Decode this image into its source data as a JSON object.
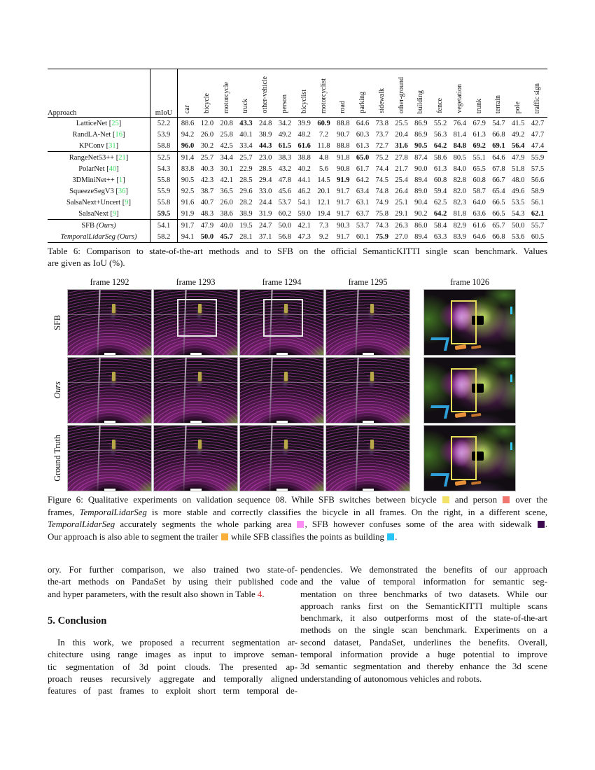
{
  "table": {
    "caption_lines": [
      "Table 6: Comparison to state-of-the-art methods and to SFB on the official SemanticKITTI single scan benchmark. Values",
      "are given as IoU (%)."
    ],
    "header": {
      "approach": "Approach",
      "miou": "mIoU",
      "classes": [
        "car",
        "bicycle",
        "motorcycle",
        "truck",
        "other-vehicle",
        "person",
        "bicyclist",
        "motorcyclist",
        "road",
        "parking",
        "sidewalk",
        "other-ground",
        "building",
        "fence",
        "vegetation",
        "trunk",
        "terrain",
        "pole",
        "traffic sign"
      ]
    },
    "rows": [
      {
        "name": "LatticeNet",
        "ref": "25",
        "miou": "52.2",
        "vals": [
          "88.6",
          "12.0",
          "20.8",
          "43.3",
          "24.8",
          "34.2",
          "39.9",
          "60.9",
          "88.8",
          "64.6",
          "73.8",
          "25.5",
          "86.9",
          "55.2",
          "76.4",
          "67.9",
          "54.7",
          "41.5",
          "42.7"
        ],
        "bold": [
          3,
          7
        ]
      },
      {
        "name": "RandLA-Net",
        "ref": "16",
        "miou": "53.9",
        "vals": [
          "94.2",
          "26.0",
          "25.8",
          "40.1",
          "38.9",
          "49.2",
          "48.2",
          "7.2",
          "90.7",
          "60.3",
          "73.7",
          "20.4",
          "86.9",
          "56.3",
          "81.4",
          "61.3",
          "66.8",
          "49.2",
          "47.7"
        ],
        "bold": []
      },
      {
        "name": "KPConv",
        "ref": "31",
        "miou": "58.8",
        "vals": [
          "96.0",
          "30.2",
          "42.5",
          "33.4",
          "44.3",
          "61.5",
          "61.6",
          "11.8",
          "88.8",
          "61.3",
          "72.7",
          "31.6",
          "90.5",
          "64.2",
          "84.8",
          "69.2",
          "69.1",
          "56.4",
          "47.4"
        ],
        "bold": [
          0,
          4,
          5,
          6,
          11,
          12,
          13,
          14,
          15,
          16,
          17
        ],
        "group_end": true
      },
      {
        "name": "RangeNet53++",
        "ref": "21",
        "miou": "52.5",
        "vals": [
          "91.4",
          "25.7",
          "34.4",
          "25.7",
          "23.0",
          "38.3",
          "38.8",
          "4.8",
          "91.8",
          "65.0",
          "75.2",
          "27.8",
          "87.4",
          "58.6",
          "80.5",
          "55.1",
          "64.6",
          "47.9",
          "55.9"
        ],
        "bold": [
          9
        ]
      },
      {
        "name": "PolarNet",
        "ref": "40",
        "miou": "54.3",
        "vals": [
          "83.8",
          "40.3",
          "30.1",
          "22.9",
          "28.5",
          "43.2",
          "40.2",
          "5.6",
          "90.8",
          "61.7",
          "74.4",
          "21.7",
          "90.0",
          "61.3",
          "84.0",
          "65.5",
          "67.8",
          "51.8",
          "57.5"
        ],
        "bold": []
      },
      {
        "name": "3DMiniNet++",
        "ref": "1",
        "miou": "55.8",
        "vals": [
          "90.5",
          "42.3",
          "42.1",
          "28.5",
          "29.4",
          "47.8",
          "44.1",
          "14.5",
          "91.9",
          "64.2",
          "74.5",
          "25.4",
          "89.4",
          "60.8",
          "82.8",
          "60.8",
          "66.7",
          "48.0",
          "56.6"
        ],
        "bold": [
          8
        ]
      },
      {
        "name": "SqueezeSegV3",
        "ref": "36",
        "miou": "55.9",
        "vals": [
          "92.5",
          "38.7",
          "36.5",
          "29.6",
          "33.0",
          "45.6",
          "46.2",
          "20.1",
          "91.7",
          "63.4",
          "74.8",
          "26.4",
          "89.0",
          "59.4",
          "82.0",
          "58.7",
          "65.4",
          "49.6",
          "58.9"
        ],
        "bold": []
      },
      {
        "name": "SalsaNext+Uncert",
        "ref": "9",
        "miou": "55.8",
        "vals": [
          "91.6",
          "40.7",
          "26.0",
          "28.2",
          "24.4",
          "53.7",
          "54.1",
          "12.1",
          "91.7",
          "63.1",
          "74.9",
          "25.1",
          "90.4",
          "62.5",
          "82.3",
          "64.0",
          "66.5",
          "53.5",
          "56.1"
        ],
        "bold": []
      },
      {
        "name": "SalsaNext",
        "ref": "9",
        "miou": "59.5",
        "miou_bold": true,
        "vals": [
          "91.9",
          "48.3",
          "38.6",
          "38.9",
          "31.9",
          "60.2",
          "59.0",
          "19.4",
          "91.7",
          "63.7",
          "75.8",
          "29.1",
          "90.2",
          "64.2",
          "81.8",
          "63.6",
          "66.5",
          "54.3",
          "62.1"
        ],
        "bold": [
          13,
          18
        ],
        "group_end": true
      },
      {
        "name": "SFB",
        "suffix": " (Ours)",
        "miou": "54.1",
        "vals": [
          "91.7",
          "47.9",
          "40.0",
          "19.5",
          "24.7",
          "50.0",
          "42.1",
          "7.3",
          "90.3",
          "53.7",
          "74.3",
          "26.3",
          "86.0",
          "58.4",
          "82.9",
          "61.6",
          "65.7",
          "50.0",
          "55.7"
        ],
        "bold": []
      },
      {
        "name": "TemporalLidarSeg",
        "name_italic": true,
        "suffix": " (Ours)",
        "miou": "58.2",
        "vals": [
          "94.1",
          "50.0",
          "45.7",
          "28.1",
          "37.1",
          "56.8",
          "47.3",
          "9.2",
          "91.7",
          "60.1",
          "75.9",
          "27.0",
          "89.4",
          "63.3",
          "83.9",
          "64.6",
          "66.8",
          "53.6",
          "60.5"
        ],
        "bold": [
          1,
          2,
          10
        ]
      }
    ]
  },
  "figure": {
    "frame_labels": [
      "frame 1292",
      "frame 1293",
      "frame 1294",
      "frame 1295",
      "frame 1026"
    ],
    "row_labels": [
      {
        "text": "SFB",
        "italic": false
      },
      {
        "text": "Ours",
        "italic": true
      },
      {
        "text": "Ground Truth",
        "italic": false
      }
    ],
    "legend_colors": {
      "bicycle": "#f2e26a",
      "person": "#f07670",
      "parking": "#fb8ef2",
      "sidewalk": "#3d0a4f",
      "trailer": "#fbb03b",
      "building": "#29c5f6"
    },
    "caption_lines": [
      [
        {
          "t": "Figure 6: Qualitative experiments on validation sequence 08. While SFB switches between bicycle "
        },
        {
          "swatch": "bicycle"
        },
        {
          "t": " and person "
        },
        {
          "swatch": "person"
        },
        {
          "t": " over the"
        }
      ],
      [
        {
          "t": "frames, "
        },
        {
          "t": "TemporalLidarSeg",
          "i": true
        },
        {
          "t": " is more stable and correctly classifies the bicycle in all frames. On the right, in a different scene,"
        }
      ],
      [
        {
          "t": "TemporalLidarSeg",
          "i": true
        },
        {
          "t": " accurately segments the whole parking area "
        },
        {
          "swatch": "parking"
        },
        {
          "t": ", SFB however confuses some of the area with sidewalk "
        },
        {
          "swatch": "sidewalk"
        },
        {
          "t": "."
        }
      ],
      [
        {
          "t": "Our approach is also able to segment the trailer "
        },
        {
          "swatch": "trailer"
        },
        {
          "t": " while SFB classifies the points as building "
        },
        {
          "swatch": "building"
        },
        {
          "t": "."
        }
      ]
    ]
  },
  "body": {
    "left": {
      "para1_lines": [
        [
          {
            "t": "ory.  For further comparison, we also trained two state-of-"
          }
        ],
        [
          {
            "t": "the-art methods on PandaSet by using their published code"
          }
        ],
        [
          {
            "t": "and hyper parameters, with the result also shown in Table "
          },
          {
            "t": "4",
            "red": true
          },
          {
            "t": "."
          }
        ]
      ],
      "heading": "5. Conclusion",
      "para2_lines": [
        "In this work, we proposed a recurrent segmentation ar-",
        "chitecture using range images as input to improve seman-",
        "tic segmentation of 3d point clouds.  The presented ap-",
        "proach reuses recursively aggregate and temporally aligned",
        "features of past frames to exploit short term temporal de-"
      ]
    },
    "right": {
      "para_lines": [
        "pendencies.  We demonstrated the benefits of our approach",
        "and the value of temporal information for semantic seg-",
        "mentation on three benchmarks of two datasets.  While our",
        "approach ranks first on the SemanticKITTI multiple scans",
        "benchmark, it also outperforms most of the state-of-the-art",
        "methods on the single scan benchmark.  Experiments on a",
        "second dataset, PandaSet, underlines the benefits.  Overall,",
        "temporal information provide a huge potential to improve",
        "3d semantic segmentation and thereby enhance the 3d scene",
        "understanding of autonomous vehicles and robots."
      ]
    }
  },
  "accent_colors": {
    "citation_green": "#3ddd63",
    "link_red": "#d62c2c"
  }
}
